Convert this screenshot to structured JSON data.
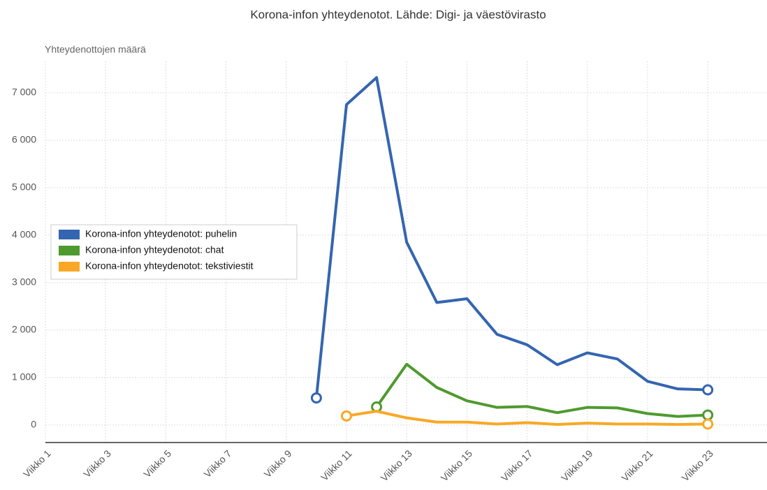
{
  "chart_data": {
    "type": "line",
    "title": "Korona-infon yhteydenotot. Lähde: Digi- ja väestövirasto",
    "y_axis_label": "Yhteydenottojen määrä",
    "categories": [
      "Viikko 1",
      null,
      "Viikko 3",
      null,
      "Viikko 5",
      null,
      "Viikko 7",
      null,
      "Viikko 9",
      null,
      "Viikko 11",
      null,
      "Viikko 13",
      null,
      "Viikko 15",
      null,
      "Viikko 17",
      null,
      "Viikko 19",
      null,
      "Viikko 21",
      null,
      "Viikko 23"
    ],
    "series": [
      {
        "name": "Korona-infon yhteydenotot: puhelin",
        "color": "#3465b0",
        "values": [
          null,
          null,
          null,
          null,
          null,
          null,
          null,
          null,
          null,
          570,
          6750,
          7320,
          3850,
          2580,
          2660,
          1910,
          1690,
          1270,
          1520,
          1390,
          920,
          760,
          740
        ]
      },
      {
        "name": "Korona-infon yhteydenotot: chat",
        "color": "#4f9a2f",
        "values": [
          null,
          null,
          null,
          null,
          null,
          null,
          null,
          null,
          null,
          null,
          null,
          380,
          1280,
          790,
          510,
          370,
          390,
          260,
          370,
          360,
          240,
          180,
          210
        ]
      },
      {
        "name": "Korona-infon yhteydenotot: tekstiviestit",
        "color": "#f9a825",
        "values": [
          null,
          null,
          null,
          null,
          null,
          null,
          null,
          null,
          null,
          null,
          190,
          290,
          150,
          60,
          60,
          20,
          50,
          10,
          40,
          20,
          20,
          10,
          20
        ]
      }
    ],
    "ylim": [
      -370,
      7660
    ],
    "yticks": [
      0,
      {
        "value": 1000,
        "label": "1 000"
      },
      {
        "value": 2000,
        "label": "2 000"
      },
      {
        "value": 3000,
        "label": "3 000"
      },
      {
        "value": 4000,
        "label": "4 000"
      },
      {
        "value": 5000,
        "label": "5 000"
      },
      {
        "value": 6000,
        "label": "6 000"
      },
      {
        "value": 7000,
        "label": "7 000"
      }
    ],
    "grid": true
  }
}
